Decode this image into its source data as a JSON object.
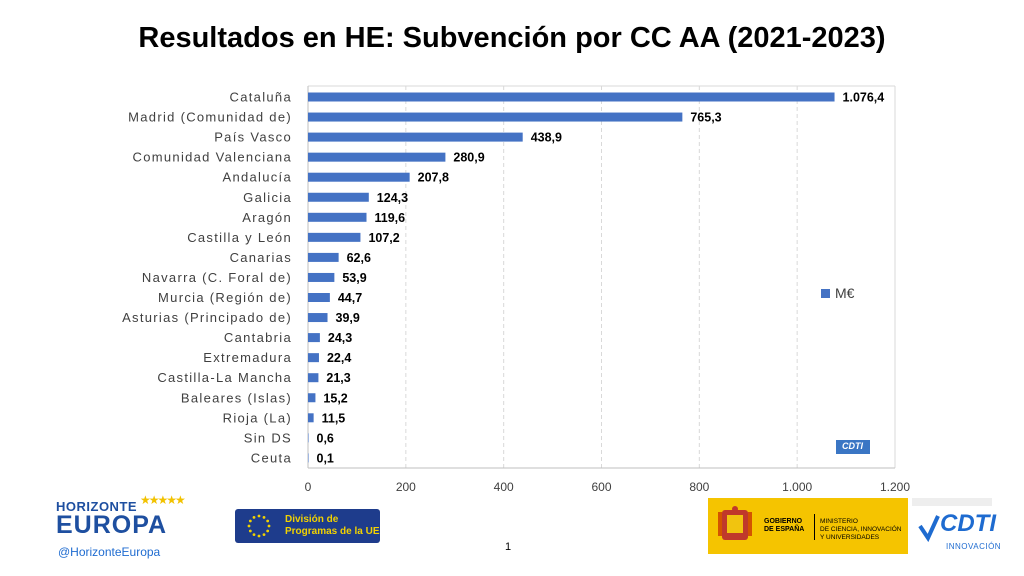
{
  "chart_data": {
    "type": "bar",
    "orientation": "horizontal",
    "title": "Resultados en HE: Subvención por CC AA (2021-2023)",
    "categories": [
      "Cataluña",
      "Madrid (Comunidad de)",
      "País Vasco",
      "Comunidad Valenciana",
      "Andalucía",
      "Galicia",
      "Aragón",
      "Castilla y León",
      "Canarias",
      "Navarra (C. Foral de)",
      "Murcia (Región de)",
      "Asturias (Principado de)",
      "Cantabria",
      "Extremadura",
      "Castilla-La Mancha",
      "Baleares (Islas)",
      "Rioja (La)",
      "Sin DS",
      "Ceuta"
    ],
    "series": [
      {
        "name": "M€",
        "values": [
          1076.4,
          765.3,
          438.9,
          280.9,
          207.8,
          124.3,
          119.6,
          107.2,
          62.6,
          53.9,
          44.7,
          39.9,
          24.3,
          22.4,
          21.3,
          15.2,
          11.5,
          0.6,
          0.1
        ],
        "value_labels": [
          "1.076,4",
          "765,3",
          "438,9",
          "280,9",
          "207,8",
          "124,3",
          "119,6",
          "107,2",
          "62,6",
          "53,9",
          "44,7",
          "39,9",
          "24,3",
          "22,4",
          "21,3",
          "15,2",
          "11,5",
          "0,6",
          "0,1"
        ],
        "color": "#4472C4"
      }
    ],
    "xlim": [
      0,
      1200
    ],
    "xticks": [
      0,
      200,
      400,
      600,
      800,
      1000,
      1200
    ],
    "xtick_labels": [
      "0",
      "200",
      "400",
      "600",
      "800",
      "1.000",
      "1.200"
    ],
    "grid": "vertical-dashed",
    "legend_position": "right"
  },
  "footer": {
    "horizonte_line1": "HORIZONTE",
    "horizonte_line2": "EUROPA",
    "horizonte_handle": "@HorizonteEuropa",
    "ue_line1": "División de",
    "ue_line2": "Programas de la UE",
    "page_number": "1",
    "gob_line1": "GOBIERNO",
    "gob_line2": "DE ESPAÑA",
    "ministerio_line1": "MINISTERIO",
    "ministerio_line2": "DE CIENCIA, INNOVACIÓN",
    "ministerio_line3": "Y UNIVERSIDADES",
    "cdti_name": "CDTI",
    "cdti_sub": "INNOVACIÓN"
  },
  "watermark": "CDTI",
  "colors": {
    "bar": "#4472C4",
    "horizonte_blue": "#1e4fa0",
    "ue_blue": "#1e3c8c",
    "gob_yellow": "#f5c400",
    "cdti_blue": "#1e6bd0"
  }
}
